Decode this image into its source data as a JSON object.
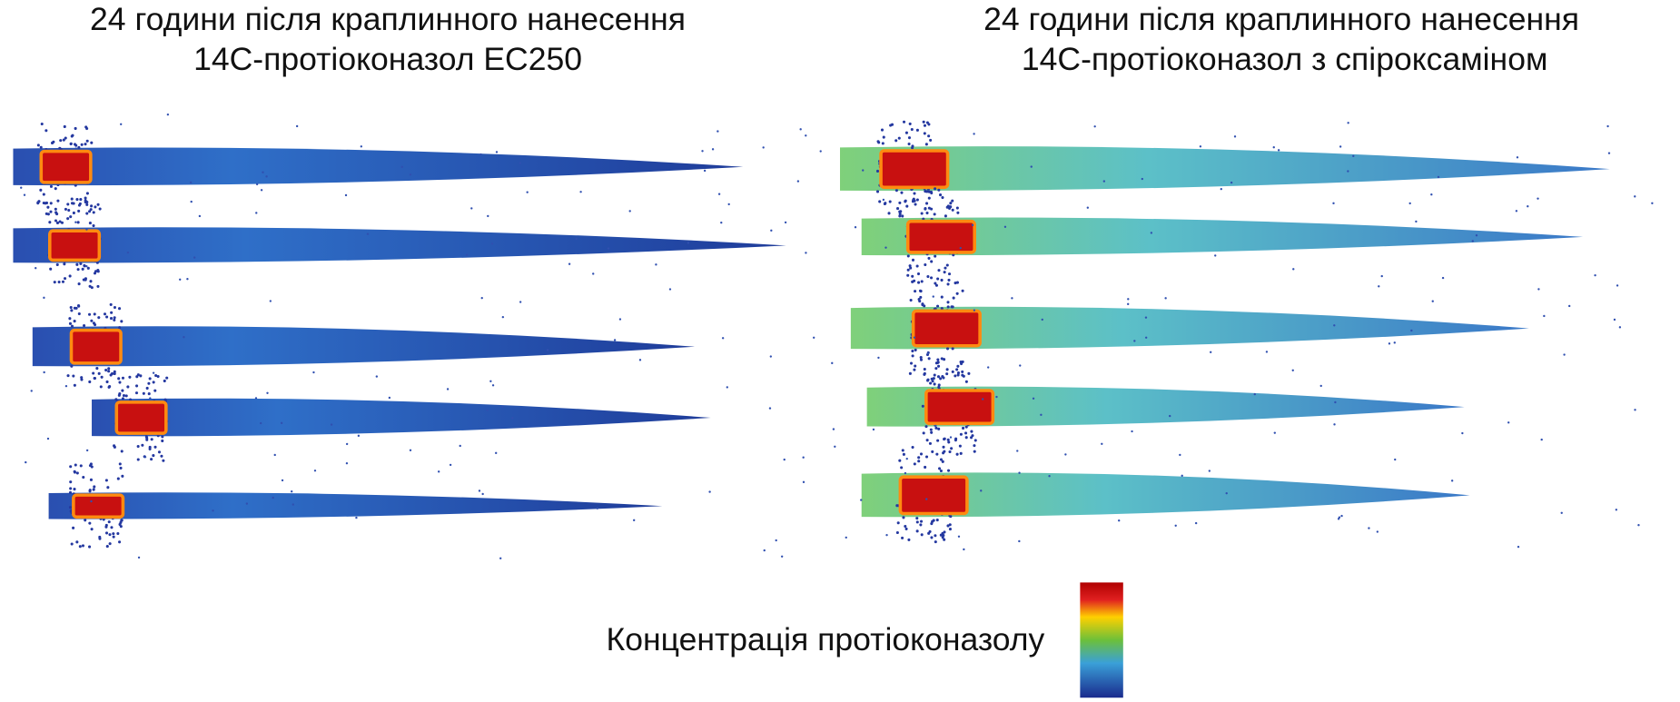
{
  "panels": [
    {
      "title_lines": [
        "24 години після краплинного нанесення",
        "14C-протіоконазол EC250"
      ]
    },
    {
      "title_lines": [
        "24 години після краплинного нанесення",
        "14C-протіоконазол з спіроксаміном"
      ]
    }
  ],
  "colorbar": {
    "label": "Концентрація протіоконазолу"
  }
}
